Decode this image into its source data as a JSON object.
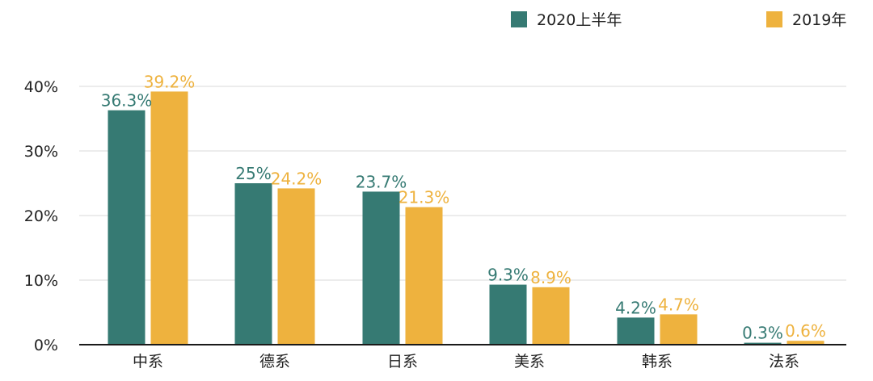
{
  "chart_data": {
    "type": "bar",
    "categories": [
      "中系",
      "德系",
      "日系",
      "美系",
      "韩系",
      "法系"
    ],
    "series": [
      {
        "name": "2020上半年",
        "color": "#367A73",
        "values": [
          36.3,
          25,
          23.7,
          9.3,
          4.2,
          0.3
        ],
        "labels": [
          "36.3%",
          "25%",
          "23.7%",
          "9.3%",
          "4.2%",
          "0.3%"
        ]
      },
      {
        "name": "2019年",
        "color": "#EEB23E",
        "values": [
          39.2,
          24.2,
          21.3,
          8.9,
          4.7,
          0.6
        ],
        "labels": [
          "39.2%",
          "24.2%",
          "21.3%",
          "8.9%",
          "4.7%",
          "0.6%"
        ]
      }
    ],
    "ylim": [
      0,
      40
    ],
    "yticks": [
      {
        "value": 0,
        "label": "0%"
      },
      {
        "value": 10,
        "label": "10%"
      },
      {
        "value": 20,
        "label": "20%"
      },
      {
        "value": 30,
        "label": "30%"
      },
      {
        "value": 40,
        "label": "40%"
      }
    ],
    "grid": true,
    "legend_position": "top-right",
    "gridline_color": "#D9D9D9",
    "axis_color": "#1A1A1A",
    "text_color": "#222222"
  }
}
